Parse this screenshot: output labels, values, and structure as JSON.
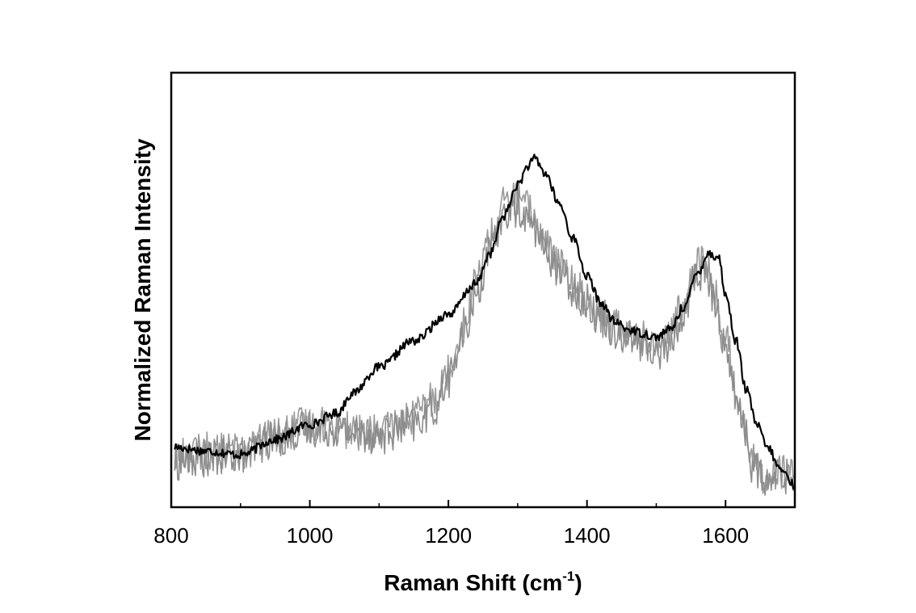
{
  "chart_data": {
    "type": "line",
    "xlabel": "Raman Shift (cm",
    "xlabel_sup": "-1",
    "xlabel_end": ")",
    "ylabel": "Normalized Raman Intensity",
    "xlim": [
      800,
      1700
    ],
    "ylim": [
      0,
      1
    ],
    "xticks": [
      800,
      1000,
      1200,
      1400,
      1600
    ],
    "xtick_labels": [
      "800",
      "1000",
      "1200",
      "1400",
      "1600"
    ],
    "yticks": [],
    "grid": false,
    "legend": "none",
    "series": [
      {
        "color": "#000000",
        "noise": 0.012,
        "x": [
          805,
          850,
          900,
          950,
          1000,
          1040,
          1060,
          1100,
          1150,
          1200,
          1240,
          1260,
          1280,
          1300,
          1315,
          1325,
          1340,
          1360,
          1380,
          1400,
          1420,
          1440,
          1460,
          1480,
          1500,
          1520,
          1540,
          1560,
          1575,
          1590,
          1600,
          1615,
          1630,
          1645,
          1660,
          1680,
          1700
        ],
        "y": [
          0.12,
          0.11,
          0.1,
          0.14,
          0.18,
          0.21,
          0.26,
          0.33,
          0.4,
          0.47,
          0.55,
          0.63,
          0.73,
          0.81,
          0.86,
          0.88,
          0.84,
          0.76,
          0.67,
          0.57,
          0.5,
          0.45,
          0.43,
          0.42,
          0.41,
          0.43,
          0.49,
          0.58,
          0.63,
          0.62,
          0.52,
          0.4,
          0.27,
          0.18,
          0.12,
          0.06,
          0.02
        ]
      },
      {
        "color": "#8c8c8c",
        "noise": 0.05,
        "x": [
          805,
          850,
          900,
          950,
          1000,
          1040,
          1060,
          1100,
          1150,
          1180,
          1200,
          1220,
          1240,
          1260,
          1280,
          1300,
          1320,
          1340,
          1360,
          1380,
          1400,
          1420,
          1440,
          1460,
          1480,
          1500,
          1520,
          1540,
          1555,
          1570,
          1585,
          1600,
          1620,
          1640,
          1660,
          1680,
          1700
        ],
        "y": [
          0.08,
          0.09,
          0.1,
          0.14,
          0.17,
          0.17,
          0.16,
          0.15,
          0.18,
          0.22,
          0.3,
          0.4,
          0.52,
          0.63,
          0.73,
          0.75,
          0.71,
          0.64,
          0.58,
          0.54,
          0.5,
          0.46,
          0.43,
          0.41,
          0.39,
          0.37,
          0.39,
          0.47,
          0.57,
          0.58,
          0.5,
          0.38,
          0.22,
          0.07,
          0.02,
          0.05,
          0.03
        ]
      },
      {
        "color": "#9a9a9a",
        "noise": 0.05,
        "x": [
          805,
          850,
          900,
          950,
          1000,
          1040,
          1060,
          1100,
          1150,
          1180,
          1200,
          1220,
          1240,
          1260,
          1280,
          1300,
          1320,
          1340,
          1360,
          1380,
          1400,
          1420,
          1440,
          1460,
          1480,
          1500,
          1520,
          1540,
          1555,
          1570,
          1585,
          1600,
          1620,
          1640,
          1660,
          1680,
          1700
        ],
        "y": [
          0.1,
          0.11,
          0.11,
          0.15,
          0.18,
          0.18,
          0.16,
          0.16,
          0.2,
          0.25,
          0.32,
          0.44,
          0.56,
          0.67,
          0.76,
          0.78,
          0.74,
          0.66,
          0.6,
          0.55,
          0.52,
          0.47,
          0.44,
          0.43,
          0.41,
          0.39,
          0.42,
          0.5,
          0.6,
          0.61,
          0.52,
          0.4,
          0.24,
          0.08,
          0.04,
          0.06,
          0.04
        ]
      }
    ]
  }
}
